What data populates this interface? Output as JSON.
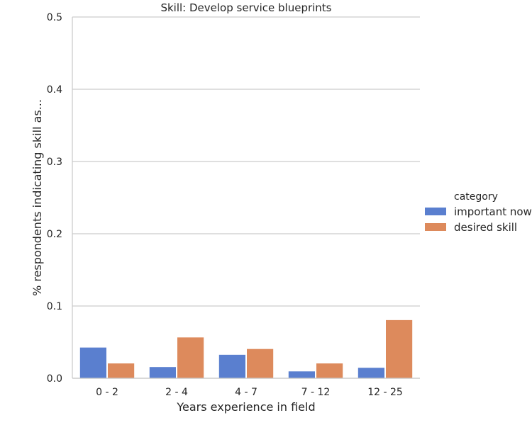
{
  "chart_data": {
    "type": "bar",
    "title": "Skill: Develop service blueprints",
    "xlabel": "Years experience in field",
    "ylabel": "% respondents indicating skill as...",
    "categories": [
      "0 - 2",
      "2 - 4",
      "4 - 7",
      "7 - 12",
      "12 - 25"
    ],
    "series": [
      {
        "name": "important now",
        "color": "#5a7fcf",
        "values": [
          0.043,
          0.016,
          0.033,
          0.01,
          0.015
        ]
      },
      {
        "name": "desired skill",
        "color": "#dd8a5c",
        "values": [
          0.021,
          0.057,
          0.041,
          0.021,
          0.081
        ]
      }
    ],
    "ylim": [
      0,
      0.5
    ],
    "yticks": [
      0.0,
      0.1,
      0.2,
      0.3,
      0.4,
      0.5
    ],
    "ytick_labels": [
      "0.0",
      "0.1",
      "0.2",
      "0.3",
      "0.4",
      "0.5"
    ],
    "grid": true,
    "legend": {
      "title": "category",
      "placement": "right"
    }
  }
}
